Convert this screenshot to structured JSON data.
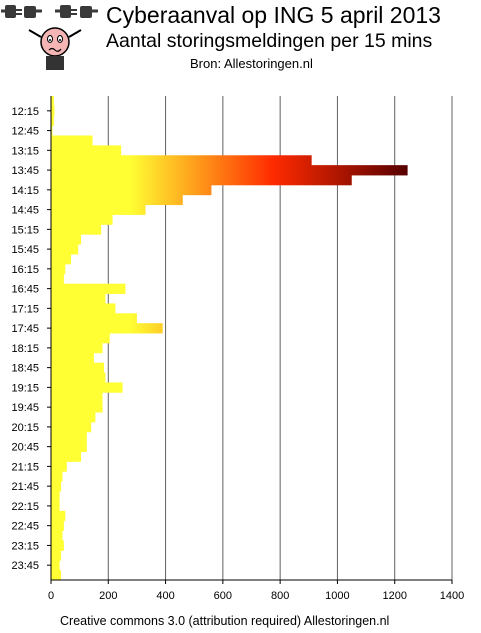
{
  "header": {
    "title": "Cyberaanval op ING 5 april 2013",
    "subtitle": "Aantal storingsmeldingen per 15 mins",
    "source": "Bron: Allestoringen.nl",
    "icons": [
      "power-plug-icon",
      "power-plug-icon",
      "worried-person-icon"
    ]
  },
  "footer": {
    "credit": "Creative commons 3.0 (attribution required) Allestoringen.nl"
  },
  "colors": {
    "bar_low": "#ffff33",
    "bar_mid": "#ff2a00",
    "bar_high": "#550000",
    "bar_outline": "#aaaa00",
    "grid": "#606060"
  },
  "chart_data": {
    "type": "bar",
    "orientation": "horizontal",
    "xlim": [
      0,
      1400
    ],
    "xticks": [
      0,
      200,
      400,
      600,
      800,
      1000,
      1200,
      1400
    ],
    "ytick_labels": [
      "12:15",
      "12:45",
      "13:15",
      "13:45",
      "14:15",
      "14:45",
      "15:15",
      "15:45",
      "16:15",
      "16:45",
      "17:15",
      "17:45",
      "18:15",
      "18:45",
      "19:15",
      "19:45",
      "20:15",
      "20:45",
      "21:15",
      "21:45",
      "22:15",
      "22:45",
      "23:15",
      "23:45"
    ],
    "grid": "vertical",
    "values": [
      10,
      12,
      10,
      5,
      145,
      245,
      910,
      1245,
      1050,
      560,
      460,
      330,
      215,
      175,
      105,
      95,
      70,
      50,
      45,
      260,
      190,
      225,
      300,
      390,
      205,
      180,
      150,
      185,
      190,
      250,
      180,
      180,
      155,
      140,
      125,
      125,
      105,
      55,
      40,
      35,
      30,
      30,
      50,
      45,
      40,
      45,
      35,
      30,
      35
    ]
  }
}
